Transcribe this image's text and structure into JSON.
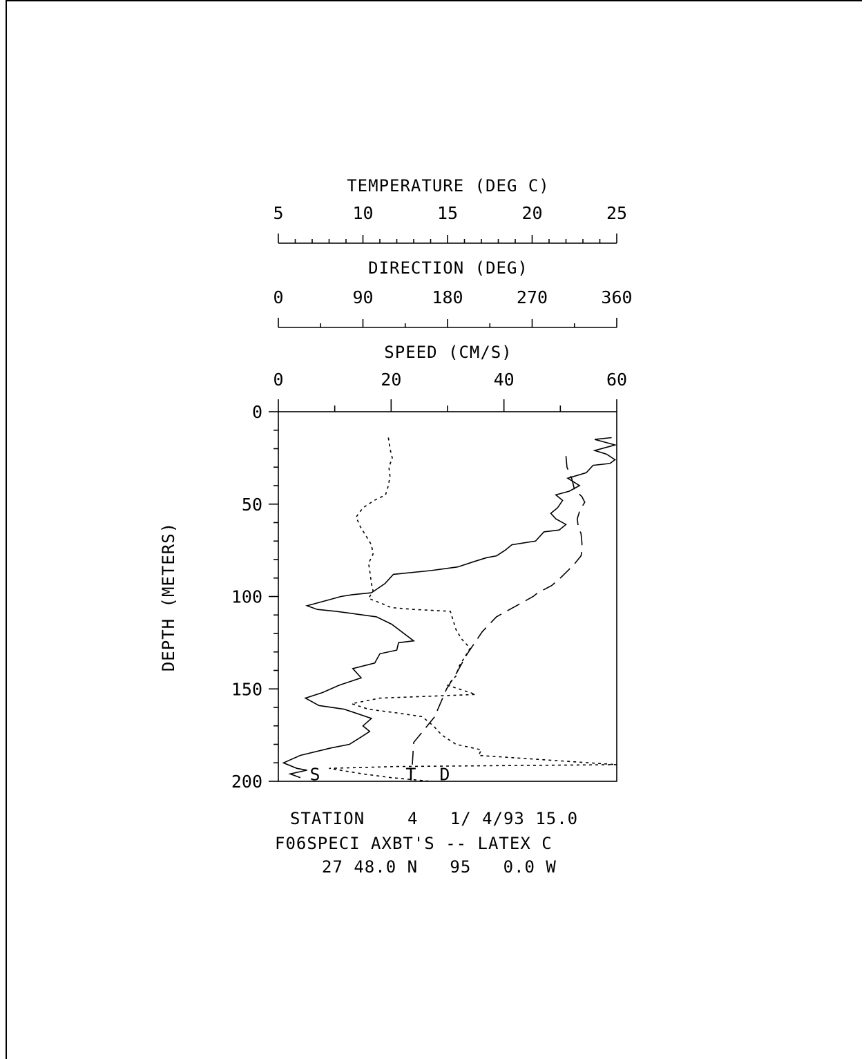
{
  "chart_data": {
    "type": "line",
    "axes": {
      "temperature": {
        "title": "TEMPERATURE (DEG C)",
        "range": [
          5,
          25
        ],
        "ticks": [
          "5",
          "10",
          "15",
          "20",
          "25"
        ]
      },
      "direction": {
        "title": "DIRECTION (DEG)",
        "range": [
          0,
          360
        ],
        "ticks": [
          "0",
          "90",
          "180",
          "270",
          "360"
        ]
      },
      "speed": {
        "title": "SPEED (CM/S)",
        "range": [
          0,
          60
        ],
        "ticks": [
          "0",
          "20",
          "40",
          "60"
        ]
      },
      "depth": {
        "title": "DEPTH (METERS)",
        "range": [
          0,
          200
        ],
        "ticks": [
          "0",
          "50",
          "100",
          "150",
          "200"
        ]
      }
    },
    "series": [
      {
        "marker": "S",
        "line_style": "dotted",
        "axis": "speed",
        "points": [
          [
            19.5,
            14
          ],
          [
            19.8,
            20
          ],
          [
            20.2,
            25
          ],
          [
            19.6,
            30
          ],
          [
            19.8,
            35
          ],
          [
            19.5,
            40
          ],
          [
            19.0,
            45
          ],
          [
            17.0,
            48
          ],
          [
            15.0,
            52
          ],
          [
            13.8,
            57
          ],
          [
            14.5,
            62
          ],
          [
            15.5,
            67
          ],
          [
            16.5,
            72
          ],
          [
            16.8,
            77
          ],
          [
            16.0,
            82
          ],
          [
            16.3,
            88
          ],
          [
            16.5,
            93
          ],
          [
            16.8,
            97
          ],
          [
            16.0,
            101
          ],
          [
            18.5,
            104
          ],
          [
            20.0,
            106
          ],
          [
            24.0,
            107
          ],
          [
            30.5,
            108
          ],
          [
            31.0,
            113
          ],
          [
            31.5,
            118
          ],
          [
            32.5,
            123
          ],
          [
            34.0,
            128
          ],
          [
            33.0,
            133
          ],
          [
            32.0,
            138
          ],
          [
            31.5,
            143
          ],
          [
            30.0,
            148
          ],
          [
            35.0,
            153
          ],
          [
            18.0,
            155
          ],
          [
            13.0,
            158
          ],
          [
            16.0,
            161
          ],
          [
            21.0,
            163
          ],
          [
            25.5,
            165
          ],
          [
            27.5,
            170
          ],
          [
            29.0,
            175
          ],
          [
            31.5,
            180
          ],
          [
            36.0,
            183
          ],
          [
            35.5,
            186
          ],
          [
            60.0,
            191
          ],
          [
            21.0,
            192
          ],
          [
            9.0,
            193
          ],
          [
            15.0,
            196
          ],
          [
            20.0,
            198
          ],
          [
            27.0,
            200
          ]
        ]
      },
      {
        "marker": "T",
        "line_style": "solid",
        "axis": "temperature",
        "points": [
          [
            24.7,
            14
          ],
          [
            23.7,
            15
          ],
          [
            24.9,
            18
          ],
          [
            23.7,
            21
          ],
          [
            24.4,
            23
          ],
          [
            24.9,
            26
          ],
          [
            24.6,
            28
          ],
          [
            23.6,
            29
          ],
          [
            23.2,
            33
          ],
          [
            22.1,
            36
          ],
          [
            22.8,
            40
          ],
          [
            22.2,
            43
          ],
          [
            21.4,
            45
          ],
          [
            21.8,
            48
          ],
          [
            21.5,
            52
          ],
          [
            21.1,
            55
          ],
          [
            21.4,
            58
          ],
          [
            22.0,
            61
          ],
          [
            21.6,
            64
          ],
          [
            20.7,
            65
          ],
          [
            20.2,
            70
          ],
          [
            18.8,
            72
          ],
          [
            18.4,
            75
          ],
          [
            17.9,
            78
          ],
          [
            17.3,
            79
          ],
          [
            16.6,
            81
          ],
          [
            15.6,
            84
          ],
          [
            14.0,
            86
          ],
          [
            11.8,
            88
          ],
          [
            11.3,
            93
          ],
          [
            10.5,
            98
          ],
          [
            9.4,
            99
          ],
          [
            8.7,
            100
          ],
          [
            7.9,
            102
          ],
          [
            6.7,
            105
          ],
          [
            7.3,
            107
          ],
          [
            8.4,
            108
          ],
          [
            10.8,
            111
          ],
          [
            11.7,
            115
          ],
          [
            13.0,
            124
          ],
          [
            12.1,
            125
          ],
          [
            12.0,
            129
          ],
          [
            11.0,
            131
          ],
          [
            10.7,
            136
          ],
          [
            9.4,
            139
          ],
          [
            9.9,
            144
          ],
          [
            8.6,
            148
          ],
          [
            7.6,
            152
          ],
          [
            6.6,
            155
          ],
          [
            7.4,
            159
          ],
          [
            8.9,
            161
          ],
          [
            10.5,
            166
          ],
          [
            10.0,
            170
          ],
          [
            10.4,
            173
          ],
          [
            9.9,
            176
          ],
          [
            9.2,
            180
          ],
          [
            8.1,
            182
          ],
          [
            6.3,
            186
          ],
          [
            5.3,
            190
          ],
          [
            6.1,
            193
          ],
          [
            6.7,
            194
          ],
          [
            5.7,
            196
          ],
          [
            6.3,
            198
          ]
        ]
      },
      {
        "marker": "D",
        "line_style": "dashed",
        "axis": "direction",
        "points": [
          [
            306,
            24
          ],
          [
            307,
            30
          ],
          [
            312,
            36
          ],
          [
            315,
            42
          ],
          [
            323,
            46
          ],
          [
            326,
            49
          ],
          [
            321,
            53
          ],
          [
            318,
            58
          ],
          [
            319,
            62
          ],
          [
            322,
            66
          ],
          [
            323,
            71
          ],
          [
            323,
            75
          ],
          [
            322,
            78
          ],
          [
            314,
            83
          ],
          [
            302,
            89
          ],
          [
            291,
            94
          ],
          [
            276,
            98
          ],
          [
            271,
            100
          ],
          [
            232,
            111
          ],
          [
            217,
            119
          ],
          [
            201,
            131
          ],
          [
            190,
            141
          ],
          [
            179,
            150
          ],
          [
            168,
            163
          ],
          [
            168,
            164
          ],
          [
            144,
            179
          ],
          [
            142,
            195
          ]
        ]
      }
    ],
    "annotations": [
      "STATION    4   1/ 4/93 15.0",
      "F06SPECI AXBT'S -- LATEX C",
      "27 48.0 N   95   0.0 W"
    ]
  }
}
